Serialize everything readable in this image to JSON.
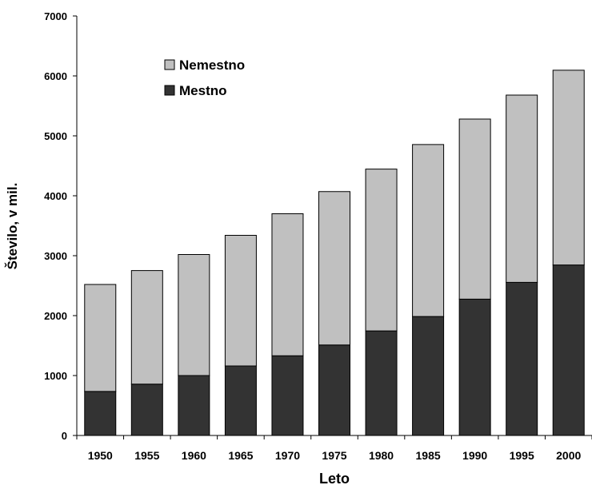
{
  "chart_data": {
    "type": "bar",
    "stacked": true,
    "categories": [
      "1950",
      "1955",
      "1960",
      "1965",
      "1970",
      "1975",
      "1980",
      "1985",
      "1990",
      "1995",
      "2000"
    ],
    "series": [
      {
        "name": "Mestno",
        "color": "#333333",
        "values": [
          735,
          857,
          1000,
          1160,
          1330,
          1510,
          1745,
          1985,
          2275,
          2555,
          2845
        ]
      },
      {
        "name": "Nemestno",
        "color": "#c0c0c0",
        "values": [
          1785,
          1895,
          2020,
          2180,
          2370,
          2560,
          2700,
          2870,
          3005,
          3125,
          3250
        ]
      }
    ],
    "xlabel": "Leto",
    "ylabel": "Število, v mil.",
    "ylim": [
      0,
      7000
    ],
    "yticks": [
      0,
      1000,
      2000,
      3000,
      4000,
      5000,
      6000,
      7000
    ],
    "legend": {
      "position": "top-left",
      "order": [
        "Nemestno",
        "Mestno"
      ]
    },
    "grid": false
  }
}
